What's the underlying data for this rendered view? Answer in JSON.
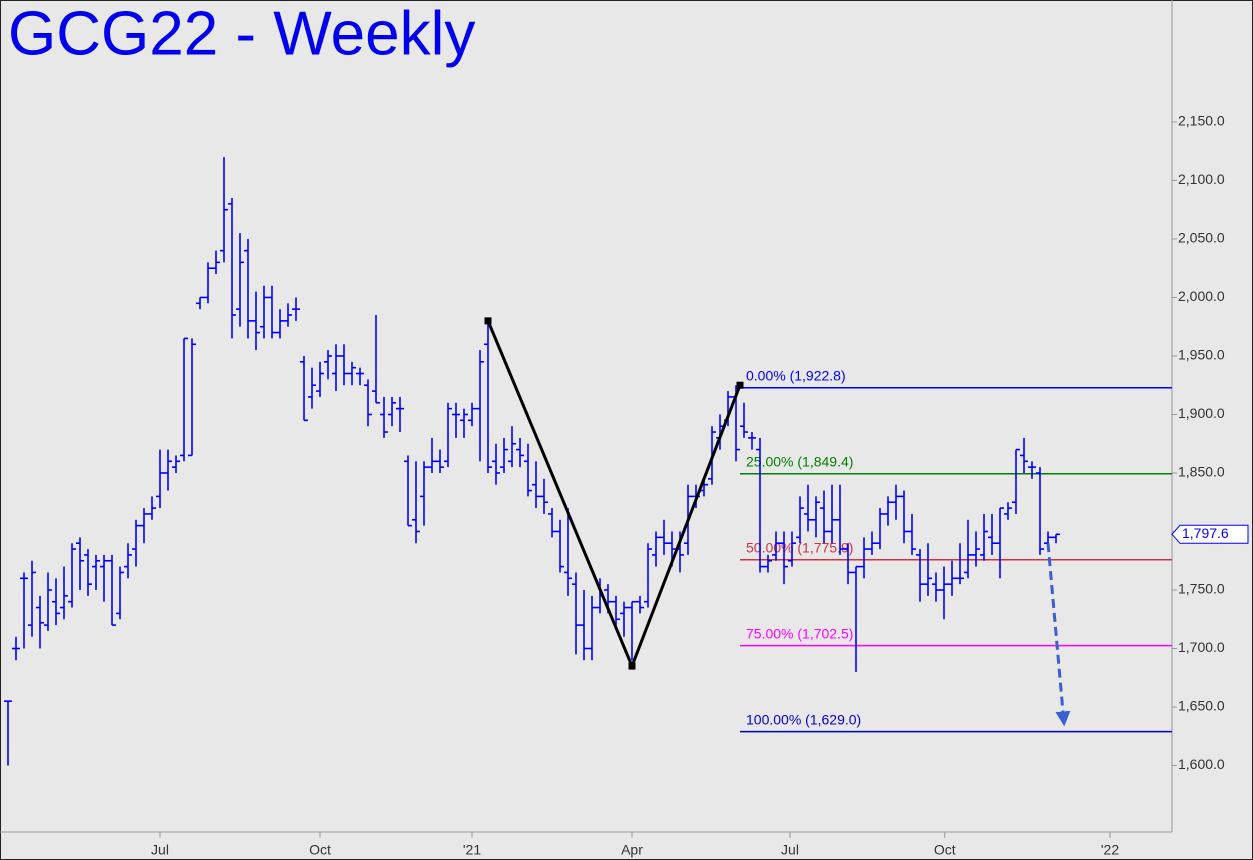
{
  "chart_data": {
    "type": "ohlc",
    "title": "GCG22 - Weekly",
    "color": "#0000ff",
    "xlim": [
      0,
      146.5
    ],
    "ylim": [
      1543.2,
      2254.2
    ],
    "xticks": [
      {
        "value": 20,
        "label": "Jul"
      },
      {
        "value": 40,
        "label": "Oct"
      },
      {
        "value": 59,
        "label": "'21"
      },
      {
        "value": 79,
        "label": "Apr"
      },
      {
        "value": 98.75,
        "label": "Jul"
      },
      {
        "value": 118.1,
        "label": "Oct"
      },
      {
        "value": 138.75,
        "label": "'22"
      }
    ],
    "yticks": [
      {
        "value": 1600,
        "label": "1,600.0"
      },
      {
        "value": 1650,
        "label": "1,650.0"
      },
      {
        "value": 1700,
        "label": "1,700.0"
      },
      {
        "value": 1750,
        "label": "1,750.0"
      },
      {
        "value": 1800,
        "label": "1,800.0"
      },
      {
        "value": 1850,
        "label": "1,850.0"
      },
      {
        "value": 1900,
        "label": "1,900.0"
      },
      {
        "value": 1950,
        "label": "1,950.0"
      },
      {
        "value": 2000,
        "label": "2,000.0"
      },
      {
        "value": 2050,
        "label": "2,050.0"
      },
      {
        "value": 2100,
        "label": "2,100.0"
      },
      {
        "value": 2150,
        "label": "2,150.0"
      }
    ],
    "x": [
      1,
      2,
      3,
      4,
      5,
      6,
      7,
      8,
      9,
      10,
      11,
      12,
      13,
      14,
      15,
      16,
      17,
      18,
      19,
      20,
      21,
      22,
      23,
      24,
      25,
      26,
      27,
      28,
      29,
      30,
      31,
      32,
      33,
      34,
      35,
      36,
      37,
      38,
      39,
      40,
      41,
      42,
      43,
      44,
      45,
      46,
      47,
      48,
      49,
      50,
      51,
      52,
      53,
      54,
      55,
      56,
      57,
      58,
      59,
      60,
      61,
      62,
      63,
      64,
      65,
      66,
      67,
      68,
      69,
      70,
      71,
      72,
      73,
      74,
      75,
      76,
      77,
      78,
      79,
      80,
      81,
      82,
      83,
      84,
      85,
      86,
      87,
      88,
      89,
      90,
      91,
      92,
      93,
      94,
      95,
      96,
      97,
      98,
      99,
      100,
      101,
      102,
      103,
      104,
      105,
      106,
      107,
      108,
      109,
      110,
      111,
      112,
      113,
      114,
      115,
      116,
      117,
      118,
      119,
      120,
      121,
      122,
      123,
      124,
      125,
      126,
      127,
      128,
      129,
      130,
      131,
      132
    ],
    "high": [
      1655,
      1710,
      1765,
      1775,
      1745,
      1765,
      1760,
      1770,
      1790,
      1795,
      1785,
      1780,
      1780,
      1780,
      1770,
      1790,
      1810,
      1820,
      1830,
      1870,
      1870,
      1865,
      1965,
      1965,
      2000,
      2030,
      2040,
      2120,
      2085,
      2055,
      2050,
      2005,
      2010,
      2010,
      1990,
      1995,
      2000,
      1950,
      1940,
      1945,
      1955,
      1960,
      1960,
      1945,
      1940,
      1930,
      1985,
      1915,
      1915,
      1915,
      1865,
      1860,
      1860,
      1880,
      1870,
      1910,
      1910,
      1905,
      1910,
      1955,
      1980,
      1875,
      1880,
      1890,
      1880,
      1875,
      1860,
      1845,
      1820,
      1810,
      1820,
      1765,
      1750,
      1745,
      1760,
      1755,
      1745,
      1740,
      1740,
      1745,
      1790,
      1800,
      1810,
      1800,
      1800,
      1840,
      1840,
      1845,
      1890,
      1900,
      1920,
      1925,
      1910,
      1885,
      1880,
      1780,
      1800,
      1800,
      1800,
      1830,
      1840,
      1830,
      1835,
      1840,
      1840,
      1790,
      1770,
      1795,
      1800,
      1820,
      1830,
      1840,
      1835,
      1815,
      1785,
      1790,
      1765,
      1770,
      1775,
      1790,
      1810,
      1800,
      1815,
      1815,
      1820,
      1825,
      1870,
      1880,
      1860,
      1855,
      1800,
      1797.6
    ],
    "low": [
      1600,
      1690,
      1700,
      1710,
      1700,
      1715,
      1720,
      1725,
      1735,
      1750,
      1745,
      1750,
      1740,
      1720,
      1725,
      1760,
      1770,
      1790,
      1810,
      1820,
      1835,
      1850,
      1860,
      1865,
      1990,
      1995,
      2020,
      2030,
      1965,
      1975,
      1965,
      1955,
      1965,
      1965,
      1965,
      1975,
      1980,
      1895,
      1905,
      1915,
      1930,
      1920,
      1925,
      1925,
      1925,
      1890,
      1910,
      1880,
      1890,
      1885,
      1805,
      1790,
      1805,
      1850,
      1850,
      1855,
      1880,
      1880,
      1890,
      1860,
      1850,
      1840,
      1850,
      1855,
      1855,
      1830,
      1820,
      1815,
      1795,
      1765,
      1745,
      1695,
      1690,
      1690,
      1730,
      1730,
      1720,
      1710,
      1690,
      1730,
      1735,
      1770,
      1780,
      1770,
      1765,
      1780,
      1820,
      1830,
      1840,
      1870,
      1890,
      1860,
      1880,
      1870,
      1765,
      1765,
      1775,
      1755,
      1770,
      1790,
      1800,
      1795,
      1790,
      1790,
      1780,
      1755,
      1680,
      1760,
      1780,
      1785,
      1805,
      1810,
      1790,
      1780,
      1740,
      1745,
      1740,
      1725,
      1745,
      1755,
      1760,
      1770,
      1775,
      1780,
      1760,
      1810,
      1815,
      1850,
      1845,
      1780,
      1785,
      1790
    ],
    "open": [
      1655,
      1700,
      1760,
      1720,
      1735,
      1720,
      1740,
      1735,
      1740,
      1790,
      1780,
      1770,
      1770,
      1775,
      1730,
      1770,
      1785,
      1805,
      1815,
      1830,
      1850,
      1855,
      1865,
      1865,
      1995,
      2000,
      2025,
      2040,
      2080,
      1990,
      2040,
      1980,
      1975,
      2000,
      1970,
      1980,
      1990,
      1945,
      1915,
      1920,
      1945,
      1935,
      1950,
      1935,
      1935,
      1925,
      1920,
      1900,
      1900,
      1905,
      1860,
      1810,
      1830,
      1855,
      1860,
      1860,
      1900,
      1895,
      1895,
      1905,
      1960,
      1860,
      1855,
      1860,
      1870,
      1860,
      1840,
      1830,
      1815,
      1800,
      1765,
      1755,
      1720,
      1700,
      1735,
      1750,
      1740,
      1730,
      1735,
      1740,
      1740,
      1780,
      1795,
      1790,
      1785,
      1790,
      1830,
      1835,
      1845,
      1880,
      1895,
      1915,
      1890,
      1880,
      1870,
      1770,
      1780,
      1790,
      1775,
      1795,
      1815,
      1810,
      1820,
      1800,
      1810,
      1785,
      1765,
      1770,
      1785,
      1790,
      1815,
      1825,
      1830,
      1800,
      1780,
      1755,
      1755,
      1750,
      1755,
      1760,
      1765,
      1780,
      1780,
      1795,
      1790,
      1815,
      1825,
      1865,
      1855,
      1850,
      1790,
      1795
    ],
    "close": [
      1655,
      1700,
      1760,
      1765,
      1722,
      1750,
      1730,
      1745,
      1785,
      1775,
      1755,
      1775,
      1775,
      1720,
      1765,
      1780,
      1805,
      1815,
      1820,
      1850,
      1860,
      1860,
      1965,
      1960,
      2000,
      2025,
      2030,
      2075,
      1985,
      2030,
      1980,
      1970,
      2000,
      1970,
      1980,
      1985,
      1990,
      1895,
      1925,
      1935,
      1950,
      1950,
      1935,
      1940,
      1935,
      1900,
      1910,
      1885,
      1910,
      1905,
      1805,
      1800,
      1855,
      1860,
      1855,
      1905,
      1900,
      1900,
      1905,
      1945,
      1855,
      1850,
      1870,
      1875,
      1865,
      1835,
      1830,
      1825,
      1800,
      1770,
      1760,
      1720,
      1700,
      1735,
      1745,
      1740,
      1725,
      1735,
      1740,
      1735,
      1785,
      1795,
      1790,
      1785,
      1780,
      1830,
      1830,
      1840,
      1885,
      1890,
      1915,
      1870,
      1885,
      1880,
      1770,
      1775,
      1790,
      1770,
      1790,
      1820,
      1810,
      1825,
      1800,
      1810,
      1785,
      1765,
      1770,
      1785,
      1790,
      1815,
      1825,
      1830,
      1800,
      1785,
      1755,
      1760,
      1750,
      1755,
      1760,
      1760,
      1780,
      1785,
      1800,
      1790,
      1820,
      1820,
      1870,
      1860,
      1855,
      1785,
      1795,
      1797.6
    ],
    "last_price": {
      "value": 1797.6,
      "label": "1,797.6"
    },
    "pattern": {
      "color": "#000000",
      "x": [
        61,
        79,
        92.5
      ],
      "y": [
        1980,
        1685,
        1925
      ]
    },
    "levels": [
      {
        "value": 1922.8,
        "label": "0.00% (1,922.8)",
        "color": "#0000ff"
      },
      {
        "value": 1849.4,
        "label": "25.00% (1,849.4)",
        "color": "#008000"
      },
      {
        "value": 1775.9,
        "label": "50.00% (1,775.9)",
        "color": "#cc3344"
      },
      {
        "value": 1702.5,
        "label": "75.00% (1,702.5)",
        "color": "#ff00ff"
      },
      {
        "value": 1629.0,
        "label": "100.00% (1,629.0)",
        "color": "#0000cc"
      }
    ],
    "projection": {
      "color": "#3a5fd0",
      "x": [
        131,
        133
      ],
      "y": [
        1790,
        1636
      ]
    }
  }
}
